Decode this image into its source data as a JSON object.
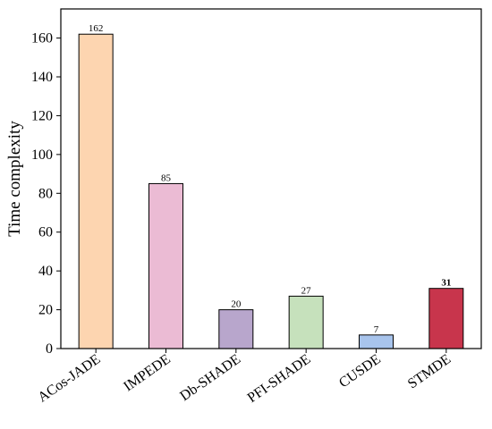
{
  "chart_data": {
    "type": "bar",
    "title": "",
    "xlabel": "",
    "ylabel": "Time complexity",
    "ylim": [
      0,
      175
    ],
    "yticks": [
      0,
      20,
      40,
      60,
      80,
      100,
      120,
      140,
      160
    ],
    "grid": false,
    "categories": [
      "ACos-JADE",
      "IMPEDE",
      "Db-SHADE",
      "PFI-SHADE",
      "CUSDE",
      "STMDE"
    ],
    "values": [
      162,
      85,
      20,
      27,
      7,
      31
    ],
    "data_labels": [
      "162",
      "85",
      "20",
      "27",
      "7",
      "31"
    ],
    "bold_label_index": 5,
    "colors": [
      "#FDD5B0",
      "#EBBBD4",
      "#B8A6CC",
      "#C6E1BC",
      "#A8C4EC",
      "#C8354C"
    ]
  }
}
